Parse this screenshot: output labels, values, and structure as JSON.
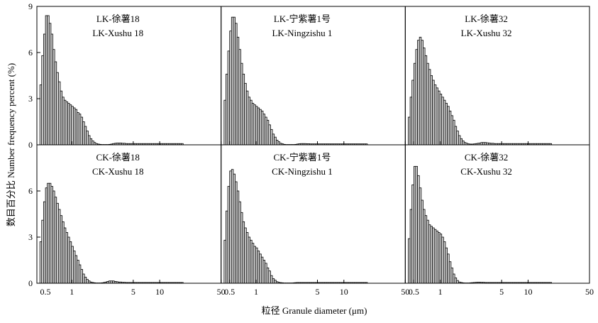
{
  "y_axis_label": "数目百分比 Number frequency percent (%)",
  "x_axis_label": "粒径 Granule diameter (μm)",
  "chart_data": {
    "type": "bar",
    "layout": "2x3 histogram grid, log x-axis",
    "x_scale": "log",
    "xlim": [
      0.4,
      50
    ],
    "ylim": [
      0,
      9
    ],
    "x_ticks": [
      0.5,
      1,
      5,
      10,
      50
    ],
    "x_tick_labels": [
      "0.5",
      "1",
      "5",
      "10",
      "50"
    ],
    "y_ticks": [
      0,
      3,
      6,
      9
    ],
    "y_tick_labels": [
      "0",
      "3",
      "6",
      "9"
    ],
    "bar_color": "#d9d9d9",
    "bin_centers": [
      0.443,
      0.465,
      0.488,
      0.513,
      0.538,
      0.565,
      0.593,
      0.623,
      0.654,
      0.687,
      0.721,
      0.757,
      0.795,
      0.835,
      0.877,
      0.921,
      0.967,
      1.015,
      1.066,
      1.119,
      1.175,
      1.234,
      1.296,
      1.361,
      1.429,
      1.5,
      1.575,
      1.654,
      1.737,
      1.824,
      1.915,
      2.011,
      2.112,
      2.218,
      2.329,
      2.446,
      2.568,
      2.696,
      2.831,
      2.973,
      3.122,
      3.278,
      3.442,
      3.614,
      3.795,
      3.985,
      4.184,
      4.393,
      4.613,
      4.844,
      5.086,
      5.34,
      5.607,
      5.888,
      6.182,
      6.491,
      6.816,
      7.157,
      7.515,
      7.891,
      8.285,
      8.699,
      9.134,
      9.591,
      10.071,
      10.575,
      11.104,
      11.659,
      12.242,
      12.854,
      13.497,
      14.171,
      14.88,
      15.624,
      16.405,
      17.225,
      18.086
    ],
    "panels": [
      {
        "label_lines": [
          "LK-徐薯18",
          "LK-Xushu 18"
        ],
        "values": [
          3.9,
          5.8,
          7.2,
          8.4,
          8.4,
          7.9,
          7.2,
          6.2,
          5.4,
          4.7,
          4.1,
          3.5,
          3.1,
          2.9,
          2.8,
          2.7,
          2.6,
          2.5,
          2.4,
          2.3,
          2.1,
          2.0,
          1.8,
          1.5,
          1.2,
          0.9,
          0.6,
          0.4,
          0.25,
          0.15,
          0.08,
          0.05,
          0.03,
          0.02,
          0.02,
          0.02,
          0.02,
          0.03,
          0.05,
          0.08,
          0.1,
          0.12,
          0.12,
          0.12,
          0.1,
          0.1,
          0.08,
          0.08,
          0.08,
          0.08,
          0.08,
          0.08,
          0.08,
          0.08,
          0.08,
          0.08,
          0.08,
          0.08,
          0.08,
          0.08,
          0.08,
          0.08,
          0.08,
          0.08,
          0.08,
          0.08,
          0.08,
          0.08,
          0.08,
          0.08,
          0.08,
          0.08,
          0.08,
          0.08,
          0.08,
          0.08,
          0.08
        ]
      },
      {
        "label_lines": [
          "LK-宁紫薯1号",
          "LK-Ningzishu 1"
        ],
        "values": [
          2.9,
          4.6,
          6.1,
          7.4,
          8.3,
          8.3,
          7.9,
          7.0,
          6.2,
          5.3,
          4.6,
          4.0,
          3.5,
          3.1,
          2.9,
          2.7,
          2.6,
          2.5,
          2.4,
          2.3,
          2.2,
          2.0,
          1.8,
          1.6,
          1.3,
          1.0,
          0.7,
          0.5,
          0.3,
          0.2,
          0.1,
          0.06,
          0.03,
          0.02,
          0.02,
          0.02,
          0.02,
          0.02,
          0.03,
          0.05,
          0.07,
          0.08,
          0.08,
          0.08,
          0.07,
          0.07,
          0.06,
          0.06,
          0.06,
          0.06,
          0.06,
          0.06,
          0.06,
          0.06,
          0.06,
          0.06,
          0.06,
          0.06,
          0.06,
          0.06,
          0.06,
          0.06,
          0.06,
          0.06,
          0.06,
          0.06,
          0.06,
          0.06,
          0.06,
          0.06,
          0.06,
          0.06,
          0.06,
          0.06,
          0.06,
          0.06,
          0.06
        ]
      },
      {
        "label_lines": [
          "LK-徐薯32",
          "LK-Xushu 32"
        ],
        "values": [
          1.8,
          3.1,
          4.2,
          5.3,
          6.2,
          6.8,
          7.0,
          6.8,
          6.3,
          5.8,
          5.3,
          4.9,
          4.5,
          4.2,
          3.9,
          3.7,
          3.5,
          3.3,
          3.1,
          2.9,
          2.7,
          2.5,
          2.2,
          1.9,
          1.6,
          1.2,
          0.9,
          0.6,
          0.4,
          0.25,
          0.15,
          0.1,
          0.06,
          0.05,
          0.05,
          0.06,
          0.08,
          0.1,
          0.12,
          0.15,
          0.15,
          0.15,
          0.13,
          0.12,
          0.1,
          0.1,
          0.08,
          0.08,
          0.08,
          0.08,
          0.08,
          0.08,
          0.08,
          0.08,
          0.08,
          0.08,
          0.08,
          0.08,
          0.08,
          0.08,
          0.08,
          0.08,
          0.08,
          0.08,
          0.08,
          0.08,
          0.08,
          0.08,
          0.08,
          0.08,
          0.08,
          0.08,
          0.08,
          0.08,
          0.08,
          0.08,
          0.08
        ]
      },
      {
        "label_lines": [
          "CK-徐薯18",
          "CK-Xushu 18"
        ],
        "values": [
          2.7,
          4.1,
          5.3,
          6.2,
          6.5,
          6.5,
          6.3,
          6.0,
          5.6,
          5.2,
          4.8,
          4.4,
          4.0,
          3.6,
          3.3,
          3.0,
          2.7,
          2.4,
          2.1,
          1.8,
          1.5,
          1.2,
          0.9,
          0.6,
          0.4,
          0.25,
          0.15,
          0.08,
          0.05,
          0.03,
          0.02,
          0.02,
          0.02,
          0.03,
          0.05,
          0.08,
          0.12,
          0.15,
          0.15,
          0.15,
          0.12,
          0.1,
          0.08,
          0.08,
          0.06,
          0.06,
          0.05,
          0.05,
          0.05,
          0.05,
          0.05,
          0.05,
          0.05,
          0.05,
          0.05,
          0.05,
          0.05,
          0.05,
          0.05,
          0.05,
          0.05,
          0.05,
          0.05,
          0.05,
          0.05,
          0.05,
          0.05,
          0.05,
          0.05,
          0.05,
          0.05,
          0.05,
          0.05,
          0.05,
          0.05,
          0.05,
          0.05
        ]
      },
      {
        "label_lines": [
          "CK-宁紫薯1号",
          "CK-Ningzishu 1"
        ],
        "values": [
          2.8,
          4.7,
          6.3,
          7.3,
          7.4,
          7.1,
          6.6,
          6.0,
          5.3,
          4.6,
          4.0,
          3.6,
          3.3,
          3.0,
          2.8,
          2.6,
          2.4,
          2.3,
          2.1,
          1.9,
          1.7,
          1.5,
          1.3,
          1.0,
          0.8,
          0.5,
          0.3,
          0.2,
          0.1,
          0.06,
          0.04,
          0.03,
          0.02,
          0.02,
          0.02,
          0.02,
          0.02,
          0.03,
          0.04,
          0.05,
          0.05,
          0.05,
          0.05,
          0.05,
          0.05,
          0.05,
          0.05,
          0.05,
          0.05,
          0.05,
          0.05,
          0.05,
          0.05,
          0.05,
          0.05,
          0.05,
          0.05,
          0.05,
          0.05,
          0.05,
          0.05,
          0.05,
          0.05,
          0.05,
          0.05,
          0.05,
          0.05,
          0.05,
          0.05,
          0.05,
          0.05,
          0.05,
          0.05,
          0.05,
          0.05,
          0.05,
          0.05
        ]
      },
      {
        "label_lines": [
          "CK-徐薯32",
          "CK-Xushu 32"
        ],
        "values": [
          2.9,
          4.8,
          6.4,
          7.6,
          7.6,
          7.0,
          6.2,
          5.4,
          4.8,
          4.4,
          4.1,
          3.8,
          3.7,
          3.6,
          3.5,
          3.4,
          3.3,
          3.2,
          3.0,
          2.7,
          2.3,
          1.9,
          1.4,
          1.0,
          0.6,
          0.35,
          0.18,
          0.08,
          0.05,
          0.03,
          0.02,
          0.02,
          0.02,
          0.03,
          0.04,
          0.05,
          0.06,
          0.07,
          0.07,
          0.06,
          0.06,
          0.05,
          0.05,
          0.05,
          0.05,
          0.05,
          0.05,
          0.05,
          0.05,
          0.05,
          0.05,
          0.05,
          0.05,
          0.05,
          0.05,
          0.05,
          0.05,
          0.05,
          0.05,
          0.05,
          0.05,
          0.05,
          0.05,
          0.05,
          0.05,
          0.05,
          0.05,
          0.05,
          0.05,
          0.05,
          0.05,
          0.05,
          0.05,
          0.05,
          0.05,
          0.05,
          0.05
        ]
      }
    ]
  }
}
